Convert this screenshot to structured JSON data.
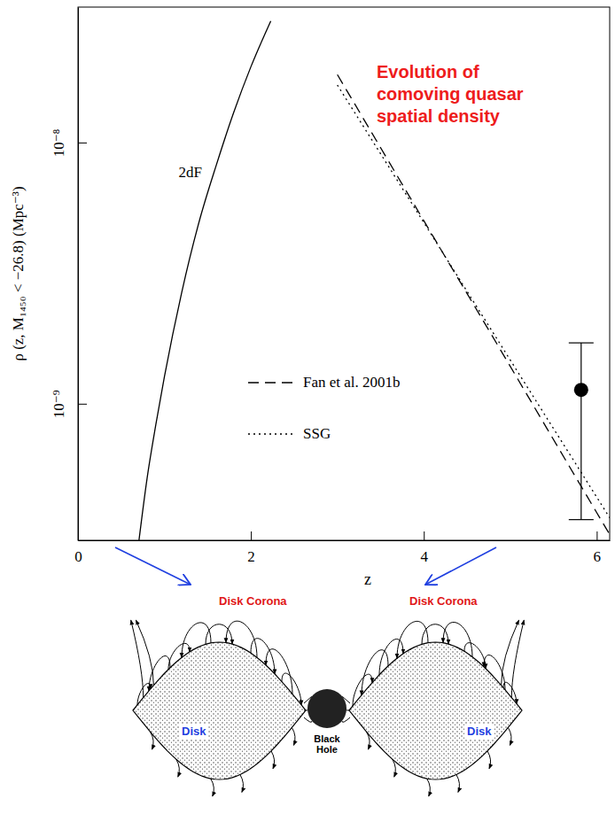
{
  "chart_data": {
    "type": "line",
    "annotations": [
      "Evolution of",
      "comoving quasar",
      "spatial density"
    ],
    "x_label": "z",
    "y_label": "ρ (z, M₁₄₅₀ < −26.8) (Mpc⁻³)",
    "xlim": [
      0,
      6.15
    ],
    "xticks": [
      0,
      2,
      4,
      6
    ],
    "ylim": [
      3e-10,
      3.3e-08
    ],
    "yticks": [
      {
        "value": 1e-09,
        "label": "10⁻⁹"
      },
      {
        "value": 1e-08,
        "label": "10⁻⁸"
      }
    ],
    "log": "y",
    "grid": false,
    "legend": "center",
    "series": [
      {
        "name": "2dF",
        "color": "#000000",
        "line_style": "solid",
        "x": [
          0.7,
          0.8,
          0.9,
          1.0,
          1.2,
          1.4,
          1.6,
          1.8,
          2.0,
          2.23
        ],
        "values": [
          2.9e-10,
          5.2e-10,
          8.3e-10,
          1.27e-09,
          2.67e-09,
          4.96e-09,
          8.2e-09,
          1.3e-08,
          1.95e-08,
          2.92e-08
        ]
      },
      {
        "name": "Fan et al. 2001b",
        "color": "#000000",
        "line_style": "dashed",
        "x": [
          3,
          4,
          5,
          6,
          6.15
        ],
        "values": [
          1.82e-08,
          5.02e-09,
          1.39e-09,
          3.83e-10,
          3.16e-10
        ]
      },
      {
        "name": "SSG",
        "color": "#000000",
        "line_style": "dotted",
        "x": [
          3,
          4,
          5,
          6,
          6.15
        ],
        "values": [
          1.66e-08,
          4.94e-09,
          1.47e-09,
          4.39e-10,
          3.66e-10
        ]
      },
      {
        "type": "scatter",
        "color": "#000000",
        "marker": "circle",
        "x": [
          5.82
        ],
        "values": [
          1.13e-09
        ],
        "error_low": [
          3.6e-10
        ],
        "error_high": [
          1.71e-09
        ]
      }
    ]
  },
  "diagram": {
    "corona_labels": [
      "Disk Corona",
      "Disk Corona"
    ],
    "disk_labels": [
      "Disk",
      "Disk"
    ],
    "black_hole_label": [
      "Black",
      "Hole"
    ]
  }
}
